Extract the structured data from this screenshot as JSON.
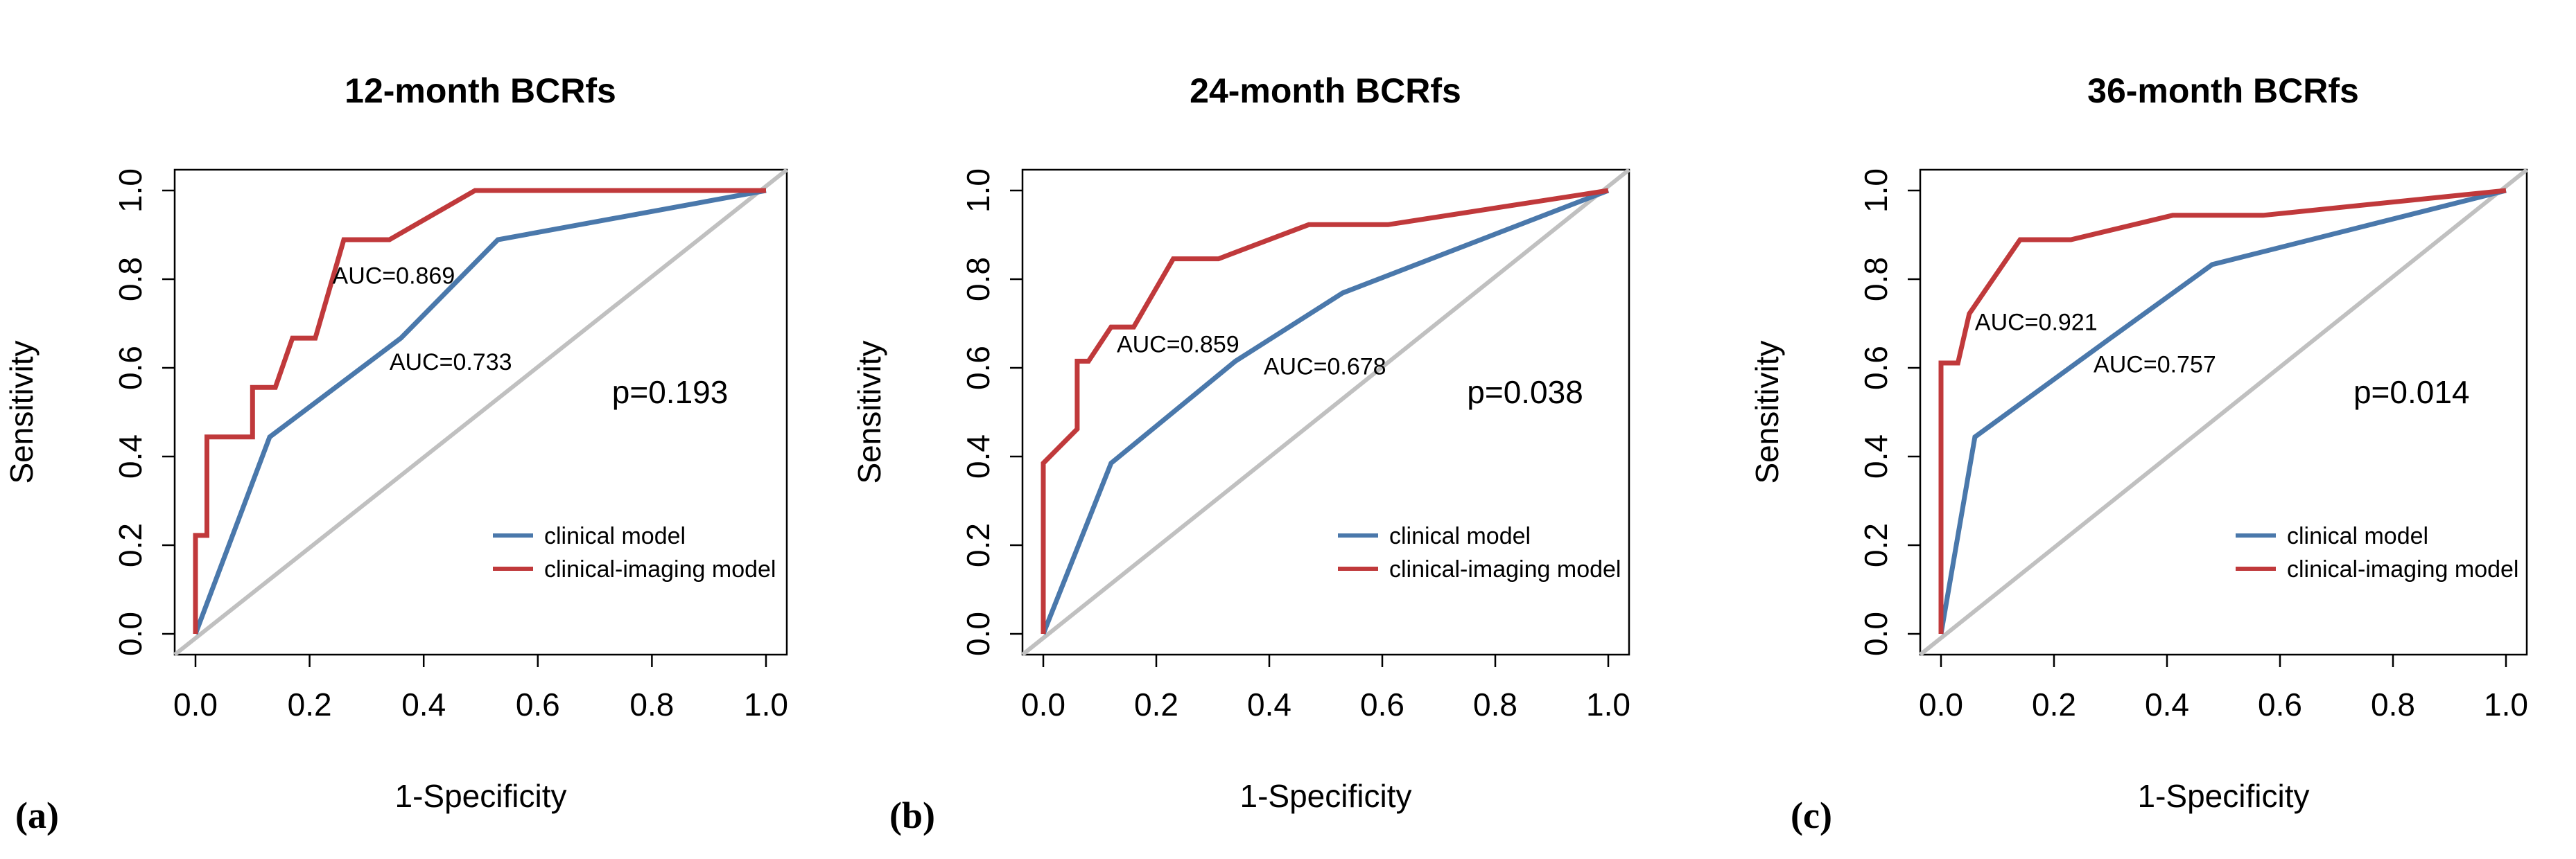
{
  "colors": {
    "clinical": "#4a78ab",
    "clinical_imaging": "#c0393b",
    "reference": "#c0c0c0"
  },
  "chart_data": [
    {
      "type": "line",
      "panel": "(a)",
      "title": "12-month BCRfs",
      "xlabel": "1-Specificity",
      "ylabel": "Sensitivity",
      "xlim": [
        0,
        1
      ],
      "ylim": [
        0,
        1
      ],
      "xticks": [
        "0.0",
        "0.2",
        "0.4",
        "0.6",
        "0.8",
        "1.0"
      ],
      "yticks": [
        "0.0",
        "0.2",
        "0.4",
        "0.6",
        "0.8",
        "1.0"
      ],
      "reference_line": [
        [
          0,
          0
        ],
        [
          1,
          1
        ]
      ],
      "series": [
        {
          "name": "clinical model",
          "color_key": "clinical",
          "auc_label": "AUC=0.733",
          "auc_anchor": [
            0.34,
            0.595
          ],
          "points": [
            [
              0,
              0
            ],
            [
              0.13,
              0.444
            ],
            [
              0.36,
              0.667
            ],
            [
              0.53,
              0.889
            ],
            [
              1,
              1
            ]
          ]
        },
        {
          "name": "clinical-imaging model",
          "color_key": "clinical_imaging",
          "auc_label": "AUC=0.869",
          "auc_anchor": [
            0.24,
            0.79
          ],
          "points": [
            [
              0,
              0
            ],
            [
              0,
              0.222
            ],
            [
              0.02,
              0.222
            ],
            [
              0.02,
              0.444
            ],
            [
              0.1,
              0.444
            ],
            [
              0.1,
              0.556
            ],
            [
              0.14,
              0.556
            ],
            [
              0.17,
              0.667
            ],
            [
              0.21,
              0.667
            ],
            [
              0.26,
              0.889
            ],
            [
              0.34,
              0.889
            ],
            [
              0.49,
              1
            ],
            [
              1,
              1
            ]
          ]
        }
      ],
      "p_value": "p=0.193",
      "p_anchor": [
        0.73,
        0.52
      ],
      "legend": {
        "placement": "bottom-right",
        "entries": [
          "clinical model",
          "clinical-imaging model"
        ]
      }
    },
    {
      "type": "line",
      "panel": "(b)",
      "title": "24-month BCRfs",
      "xlabel": "1-Specificity",
      "ylabel": "Sensitivity",
      "xlim": [
        0,
        1
      ],
      "ylim": [
        0,
        1
      ],
      "xticks": [
        "0.0",
        "0.2",
        "0.4",
        "0.6",
        "0.8",
        "1.0"
      ],
      "yticks": [
        "0.0",
        "0.2",
        "0.4",
        "0.6",
        "0.8",
        "1.0"
      ],
      "reference_line": [
        [
          0,
          0
        ],
        [
          1,
          1
        ]
      ],
      "series": [
        {
          "name": "clinical model",
          "color_key": "clinical",
          "auc_label": "AUC=0.678",
          "auc_anchor": [
            0.39,
            0.585
          ],
          "points": [
            [
              0,
              0
            ],
            [
              0.12,
              0.385
            ],
            [
              0.34,
              0.615
            ],
            [
              0.53,
              0.769
            ],
            [
              1,
              1
            ]
          ]
        },
        {
          "name": "clinical-imaging model",
          "color_key": "clinical_imaging",
          "auc_label": "AUC=0.859",
          "auc_anchor": [
            0.13,
            0.635
          ],
          "points": [
            [
              0,
              0
            ],
            [
              0,
              0.385
            ],
            [
              0.06,
              0.462
            ],
            [
              0.06,
              0.615
            ],
            [
              0.08,
              0.615
            ],
            [
              0.12,
              0.692
            ],
            [
              0.16,
              0.692
            ],
            [
              0.23,
              0.846
            ],
            [
              0.31,
              0.846
            ],
            [
              0.47,
              0.923
            ],
            [
              0.61,
              0.923
            ],
            [
              1,
              1
            ]
          ]
        }
      ],
      "p_value": "p=0.038",
      "p_anchor": [
        0.75,
        0.52
      ],
      "legend": {
        "placement": "bottom-right",
        "entries": [
          "clinical model",
          "clinical-imaging model"
        ]
      }
    },
    {
      "type": "line",
      "panel": "(c)",
      "title": "36-month BCRfs",
      "xlabel": "1-Specificity",
      "ylabel": "Sensitivity",
      "xlim": [
        0,
        1
      ],
      "ylim": [
        0,
        1
      ],
      "xticks": [
        "0.0",
        "0.2",
        "0.4",
        "0.6",
        "0.8",
        "1.0"
      ],
      "yticks": [
        "0.0",
        "0.2",
        "0.4",
        "0.6",
        "0.8",
        "1.0"
      ],
      "reference_line": [
        [
          0,
          0
        ],
        [
          1,
          1
        ]
      ],
      "series": [
        {
          "name": "clinical model",
          "color_key": "clinical",
          "auc_label": "AUC=0.757",
          "auc_anchor": [
            0.27,
            0.59
          ],
          "points": [
            [
              0,
              0
            ],
            [
              0.06,
              0.444
            ],
            [
              0.3,
              0.667
            ],
            [
              0.48,
              0.833
            ],
            [
              1,
              1
            ]
          ]
        },
        {
          "name": "clinical-imaging model",
          "color_key": "clinical_imaging",
          "auc_label": "AUC=0.921",
          "auc_anchor": [
            0.06,
            0.685
          ],
          "points": [
            [
              0,
              0
            ],
            [
              0,
              0.611
            ],
            [
              0.03,
              0.611
            ],
            [
              0.05,
              0.722
            ],
            [
              0.08,
              0.778
            ],
            [
              0.14,
              0.889
            ],
            [
              0.23,
              0.889
            ],
            [
              0.41,
              0.944
            ],
            [
              0.57,
              0.944
            ],
            [
              1,
              1
            ]
          ]
        }
      ],
      "p_value": "p=0.014",
      "p_anchor": [
        0.73,
        0.52
      ],
      "legend": {
        "placement": "bottom-right",
        "entries": [
          "clinical model",
          "clinical-imaging model"
        ]
      }
    }
  ]
}
